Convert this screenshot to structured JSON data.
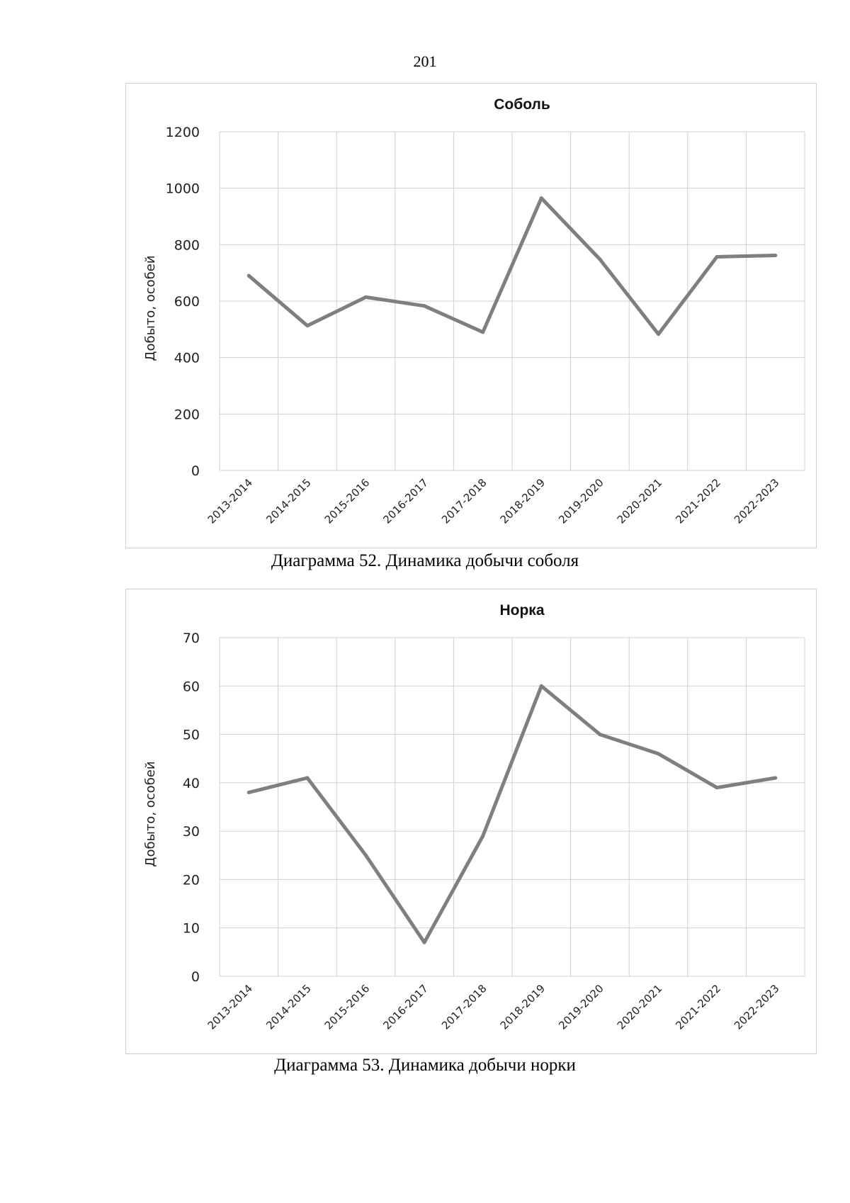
{
  "page": {
    "number": "201"
  },
  "chart_data": [
    {
      "type": "line",
      "title": "Соболь",
      "xlabel": "",
      "ylabel": "Добыто, особей",
      "ylim": [
        0,
        1200
      ],
      "yticks": [
        0,
        200,
        400,
        600,
        800,
        1000,
        1200
      ],
      "grid": true,
      "categories": [
        "2013-2014",
        "2014-2015",
        "2015-2016",
        "2016-2017",
        "2017-2018",
        "2018-2019",
        "2019-2020",
        "2020-2021",
        "2021-2022",
        "2022-2023"
      ],
      "series": [
        {
          "name": "Соболь",
          "values": [
            690,
            513,
            614,
            583,
            490,
            965,
            748,
            483,
            757,
            762
          ],
          "color": "#7f7f7f"
        }
      ],
      "caption": "Диаграмма 52. Динамика добычи соболя"
    },
    {
      "type": "line",
      "title": "Норка",
      "xlabel": "",
      "ylabel": "Добыто, особей",
      "ylim": [
        0,
        70
      ],
      "yticks": [
        0,
        10,
        20,
        30,
        40,
        50,
        60,
        70
      ],
      "grid": true,
      "categories": [
        "2013-2014",
        "2014-2015",
        "2015-2016",
        "2016-2017",
        "2017-2018",
        "2018-2019",
        "2019-2020",
        "2020-2021",
        "2021-2022",
        "2022-2023"
      ],
      "series": [
        {
          "name": "Норка",
          "values": [
            38,
            41,
            25,
            7,
            29,
            60,
            50,
            46,
            39,
            41
          ],
          "color": "#7f7f7f"
        }
      ],
      "caption": "Диаграмма 53. Динамика добычи норки"
    }
  ]
}
